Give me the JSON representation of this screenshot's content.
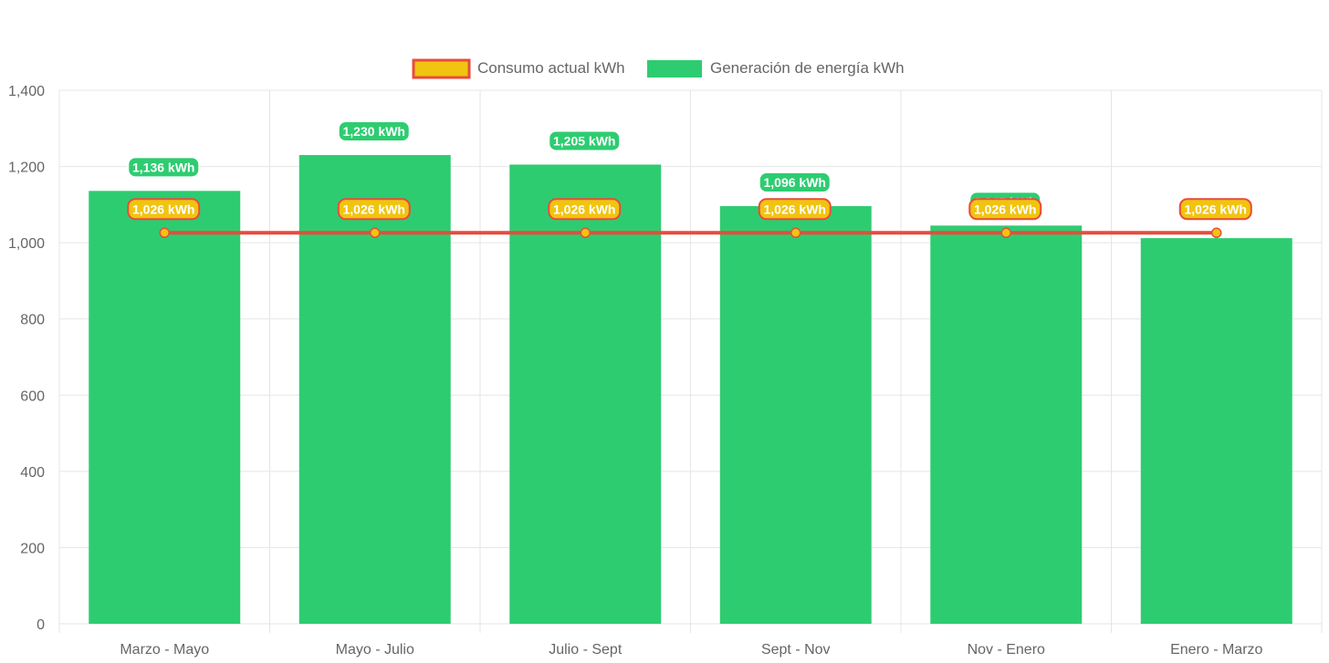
{
  "colors": {
    "bar_fill": "#2ecc71",
    "line_stroke": "#e74c3c",
    "point_fill": "#f1c40f",
    "grid": "#e5e5e5",
    "axis_text": "#666666"
  },
  "chart_data": {
    "type": "bar",
    "categories": [
      "Marzo - Mayo",
      "Mayo - Julio",
      "Julio - Sept",
      "Sept - Nov",
      "Nov - Enero",
      "Enero - Marzo"
    ],
    "series": [
      {
        "name": "Consumo actual kWh",
        "type": "line",
        "values": [
          1026,
          1026,
          1026,
          1026,
          1026,
          1026
        ],
        "labels": [
          "1,026 kWh",
          "1,026 kWh",
          "1,026 kWh",
          "1,026 kWh",
          "1,026 kWh",
          "1,026 kWh"
        ]
      },
      {
        "name": "Generación de energía kWh",
        "type": "bar",
        "values": [
          1136,
          1230,
          1205,
          1096,
          1045,
          1012
        ],
        "labels": [
          "1,136 kWh",
          "1,230 kWh",
          "1,205 kWh",
          "1,096 kWh",
          "1,045 kWh",
          ""
        ]
      }
    ],
    "yticks": [
      "0",
      "200",
      "400",
      "600",
      "800",
      "1,000",
      "1,200",
      "1,400"
    ],
    "ylim": [
      0,
      1400
    ],
    "grid": true,
    "legend_position": "top"
  }
}
